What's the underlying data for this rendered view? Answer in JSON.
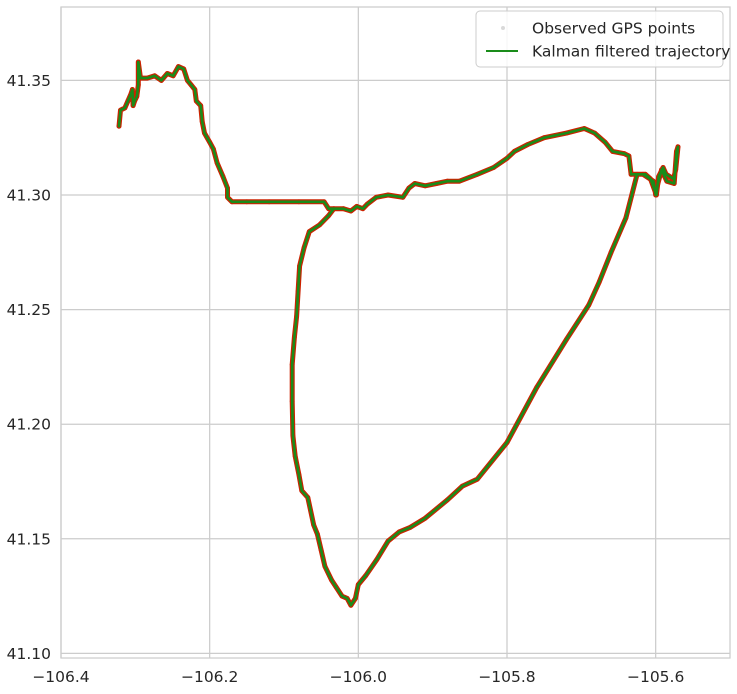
{
  "chart_data": {
    "type": "line",
    "title": "",
    "xlabel": "",
    "ylabel": "",
    "xlim": [
      -106.4,
      -105.5
    ],
    "ylim": [
      41.098,
      41.382
    ],
    "x_ticks": [
      -106.4,
      -106.2,
      -106.0,
      -105.8,
      -105.6
    ],
    "x_tick_labels": [
      "−106.4",
      "−106.2",
      "−106.0",
      "−105.8",
      "−105.6"
    ],
    "y_ticks": [
      41.1,
      41.15,
      41.2,
      41.25,
      41.3,
      41.35
    ],
    "y_tick_labels": [
      "41.10",
      "41.15",
      "41.20",
      "41.25",
      "41.30",
      "41.35"
    ],
    "grid": true,
    "legend_position": "top-right",
    "series": [
      {
        "name": "Observed GPS points",
        "style": "points",
        "color": "#cc2200",
        "legend_color": "#d9d9d9",
        "points": [
          [
            -106.322,
            41.33
          ],
          [
            -106.32,
            41.337
          ],
          [
            -106.314,
            41.338
          ],
          [
            -106.31,
            41.341
          ],
          [
            -106.306,
            41.344
          ],
          [
            -106.304,
            41.346
          ],
          [
            -106.303,
            41.339
          ],
          [
            -106.301,
            41.341
          ],
          [
            -106.298,
            41.343
          ],
          [
            -106.296,
            41.348
          ],
          [
            -106.296,
            41.358
          ],
          [
            -106.293,
            41.351
          ],
          [
            -106.284,
            41.351
          ],
          [
            -106.274,
            41.352
          ],
          [
            -106.265,
            41.35
          ],
          [
            -106.257,
            41.353
          ],
          [
            -106.249,
            41.352
          ],
          [
            -106.242,
            41.356
          ],
          [
            -106.235,
            41.355
          ],
          [
            -106.23,
            41.35
          ],
          [
            -106.225,
            41.348
          ],
          [
            -106.22,
            41.346
          ],
          [
            -106.218,
            41.341
          ],
          [
            -106.212,
            41.339
          ],
          [
            -106.21,
            41.332
          ],
          [
            -106.207,
            41.327
          ],
          [
            -106.2,
            41.323
          ],
          [
            -106.195,
            41.32
          ],
          [
            -106.19,
            41.314
          ],
          [
            -106.182,
            41.308
          ],
          [
            -106.176,
            41.303
          ],
          [
            -106.176,
            41.299
          ],
          [
            -106.17,
            41.297
          ],
          [
            -106.15,
            41.297
          ],
          [
            -106.12,
            41.297
          ],
          [
            -106.08,
            41.297
          ],
          [
            -106.046,
            41.297
          ],
          [
            -106.04,
            41.294
          ],
          [
            -106.02,
            41.294
          ],
          [
            -106.01,
            41.293
          ],
          [
            -106.002,
            41.295
          ],
          [
            -105.994,
            41.294
          ],
          [
            -105.988,
            41.296
          ],
          [
            -105.976,
            41.299
          ],
          [
            -105.96,
            41.3
          ],
          [
            -105.94,
            41.299
          ],
          [
            -105.932,
            41.303
          ],
          [
            -105.924,
            41.305
          ],
          [
            -105.91,
            41.304
          ],
          [
            -105.895,
            41.305
          ],
          [
            -105.88,
            41.306
          ],
          [
            -105.864,
            41.306
          ],
          [
            -105.84,
            41.309
          ],
          [
            -105.818,
            41.312
          ],
          [
            -105.8,
            41.316
          ],
          [
            -105.79,
            41.319
          ],
          [
            -105.772,
            41.322
          ],
          [
            -105.75,
            41.325
          ],
          [
            -105.72,
            41.327
          ],
          [
            -105.696,
            41.329
          ],
          [
            -105.682,
            41.327
          ],
          [
            -105.668,
            41.323
          ],
          [
            -105.658,
            41.319
          ],
          [
            -105.642,
            41.318
          ],
          [
            -105.636,
            41.317
          ],
          [
            -105.633,
            41.309
          ],
          [
            -105.614,
            41.309
          ],
          [
            -105.607,
            41.307
          ],
          [
            -105.599,
            41.3
          ],
          [
            -105.596,
            41.308
          ],
          [
            -105.59,
            41.312
          ],
          [
            -105.586,
            41.309
          ],
          [
            -105.576,
            41.307
          ],
          [
            -105.573,
            41.311
          ],
          [
            -105.57,
            41.321
          ],
          [
            -105.572,
            41.319
          ],
          [
            -105.575,
            41.305
          ],
          [
            -105.585,
            41.306
          ],
          [
            -105.592,
            41.311
          ],
          [
            -105.597,
            41.305
          ],
          [
            -105.6,
            41.3
          ],
          [
            -105.603,
            41.306
          ],
          [
            -105.617,
            41.309
          ],
          [
            -105.625,
            41.309
          ],
          [
            -105.64,
            41.29
          ],
          [
            -105.66,
            41.275
          ],
          [
            -105.676,
            41.262
          ],
          [
            -105.69,
            41.252
          ],
          [
            -105.72,
            41.237
          ],
          [
            -105.76,
            41.216
          ],
          [
            -105.8,
            41.192
          ],
          [
            -105.84,
            41.176
          ],
          [
            -105.86,
            41.173
          ],
          [
            -105.88,
            41.167
          ],
          [
            -105.91,
            41.159
          ],
          [
            -105.93,
            41.155
          ],
          [
            -105.945,
            41.153
          ],
          [
            -105.96,
            41.149
          ],
          [
            -105.975,
            41.141
          ],
          [
            -105.99,
            41.134
          ],
          [
            -106.0,
            41.13
          ],
          [
            -106.004,
            41.124
          ],
          [
            -106.01,
            41.121
          ],
          [
            -106.015,
            41.124
          ],
          [
            -106.022,
            41.125
          ],
          [
            -106.03,
            41.129
          ],
          [
            -106.036,
            41.132
          ],
          [
            -106.045,
            41.138
          ],
          [
            -106.05,
            41.145
          ],
          [
            -106.055,
            41.152
          ],
          [
            -106.06,
            41.156
          ],
          [
            -106.068,
            41.168
          ],
          [
            -106.076,
            41.171
          ],
          [
            -106.08,
            41.178
          ],
          [
            -106.085,
            41.186
          ],
          [
            -106.088,
            41.195
          ],
          [
            -106.089,
            41.21
          ],
          [
            -106.089,
            41.226
          ],
          [
            -106.086,
            41.238
          ],
          [
            -106.083,
            41.247
          ],
          [
            -106.081,
            41.258
          ],
          [
            -106.079,
            41.269
          ],
          [
            -106.073,
            41.277
          ],
          [
            -106.066,
            41.284
          ],
          [
            -106.052,
            41.287
          ],
          [
            -106.04,
            41.291
          ],
          [
            -106.033,
            41.294
          ]
        ]
      },
      {
        "name": "Kalman filtered trajectory",
        "style": "line",
        "color": "#1a8c1a",
        "points": [
          [
            -106.322,
            41.33
          ],
          [
            -106.32,
            41.337
          ],
          [
            -106.314,
            41.338
          ],
          [
            -106.31,
            41.341
          ],
          [
            -106.306,
            41.344
          ],
          [
            -106.304,
            41.346
          ],
          [
            -106.303,
            41.339
          ],
          [
            -106.301,
            41.341
          ],
          [
            -106.298,
            41.343
          ],
          [
            -106.296,
            41.348
          ],
          [
            -106.296,
            41.358
          ],
          [
            -106.293,
            41.351
          ],
          [
            -106.284,
            41.351
          ],
          [
            -106.274,
            41.352
          ],
          [
            -106.265,
            41.35
          ],
          [
            -106.257,
            41.353
          ],
          [
            -106.249,
            41.352
          ],
          [
            -106.242,
            41.356
          ],
          [
            -106.235,
            41.355
          ],
          [
            -106.23,
            41.35
          ],
          [
            -106.225,
            41.348
          ],
          [
            -106.22,
            41.346
          ],
          [
            -106.218,
            41.341
          ],
          [
            -106.212,
            41.339
          ],
          [
            -106.21,
            41.332
          ],
          [
            -106.207,
            41.327
          ],
          [
            -106.2,
            41.323
          ],
          [
            -106.195,
            41.32
          ],
          [
            -106.19,
            41.314
          ],
          [
            -106.182,
            41.308
          ],
          [
            -106.176,
            41.303
          ],
          [
            -106.176,
            41.299
          ],
          [
            -106.17,
            41.297
          ],
          [
            -106.15,
            41.297
          ],
          [
            -106.12,
            41.297
          ],
          [
            -106.08,
            41.297
          ],
          [
            -106.046,
            41.297
          ],
          [
            -106.04,
            41.294
          ],
          [
            -106.02,
            41.294
          ],
          [
            -106.01,
            41.293
          ],
          [
            -106.002,
            41.295
          ],
          [
            -105.994,
            41.294
          ],
          [
            -105.988,
            41.296
          ],
          [
            -105.976,
            41.299
          ],
          [
            -105.96,
            41.3
          ],
          [
            -105.94,
            41.299
          ],
          [
            -105.932,
            41.303
          ],
          [
            -105.924,
            41.305
          ],
          [
            -105.91,
            41.304
          ],
          [
            -105.895,
            41.305
          ],
          [
            -105.88,
            41.306
          ],
          [
            -105.864,
            41.306
          ],
          [
            -105.84,
            41.309
          ],
          [
            -105.818,
            41.312
          ],
          [
            -105.8,
            41.316
          ],
          [
            -105.79,
            41.319
          ],
          [
            -105.772,
            41.322
          ],
          [
            -105.75,
            41.325
          ],
          [
            -105.72,
            41.327
          ],
          [
            -105.696,
            41.329
          ],
          [
            -105.682,
            41.327
          ],
          [
            -105.668,
            41.323
          ],
          [
            -105.658,
            41.319
          ],
          [
            -105.642,
            41.318
          ],
          [
            -105.636,
            41.317
          ],
          [
            -105.633,
            41.309
          ],
          [
            -105.614,
            41.309
          ],
          [
            -105.607,
            41.307
          ],
          [
            -105.599,
            41.3
          ],
          [
            -105.596,
            41.308
          ],
          [
            -105.59,
            41.312
          ],
          [
            -105.586,
            41.309
          ],
          [
            -105.576,
            41.307
          ],
          [
            -105.573,
            41.311
          ],
          [
            -105.57,
            41.321
          ],
          [
            -105.572,
            41.319
          ],
          [
            -105.575,
            41.305
          ],
          [
            -105.585,
            41.306
          ],
          [
            -105.592,
            41.311
          ],
          [
            -105.597,
            41.305
          ],
          [
            -105.6,
            41.3
          ],
          [
            -105.603,
            41.306
          ],
          [
            -105.617,
            41.309
          ],
          [
            -105.625,
            41.309
          ],
          [
            -105.64,
            41.29
          ],
          [
            -105.66,
            41.275
          ],
          [
            -105.676,
            41.262
          ],
          [
            -105.69,
            41.252
          ],
          [
            -105.72,
            41.237
          ],
          [
            -105.76,
            41.216
          ],
          [
            -105.8,
            41.192
          ],
          [
            -105.84,
            41.176
          ],
          [
            -105.86,
            41.173
          ],
          [
            -105.88,
            41.167
          ],
          [
            -105.91,
            41.159
          ],
          [
            -105.93,
            41.155
          ],
          [
            -105.945,
            41.153
          ],
          [
            -105.96,
            41.149
          ],
          [
            -105.975,
            41.141
          ],
          [
            -105.99,
            41.134
          ],
          [
            -106.0,
            41.13
          ],
          [
            -106.004,
            41.124
          ],
          [
            -106.01,
            41.121
          ],
          [
            -106.015,
            41.124
          ],
          [
            -106.022,
            41.125
          ],
          [
            -106.03,
            41.129
          ],
          [
            -106.036,
            41.132
          ],
          [
            -106.045,
            41.138
          ],
          [
            -106.05,
            41.145
          ],
          [
            -106.055,
            41.152
          ],
          [
            -106.06,
            41.156
          ],
          [
            -106.068,
            41.168
          ],
          [
            -106.076,
            41.171
          ],
          [
            -106.08,
            41.178
          ],
          [
            -106.085,
            41.186
          ],
          [
            -106.088,
            41.195
          ],
          [
            -106.089,
            41.21
          ],
          [
            -106.089,
            41.226
          ],
          [
            -106.086,
            41.238
          ],
          [
            -106.083,
            41.247
          ],
          [
            -106.081,
            41.258
          ],
          [
            -106.079,
            41.269
          ],
          [
            -106.073,
            41.277
          ],
          [
            -106.066,
            41.284
          ],
          [
            -106.052,
            41.287
          ],
          [
            -106.04,
            41.291
          ],
          [
            -106.033,
            41.294
          ]
        ]
      }
    ]
  }
}
